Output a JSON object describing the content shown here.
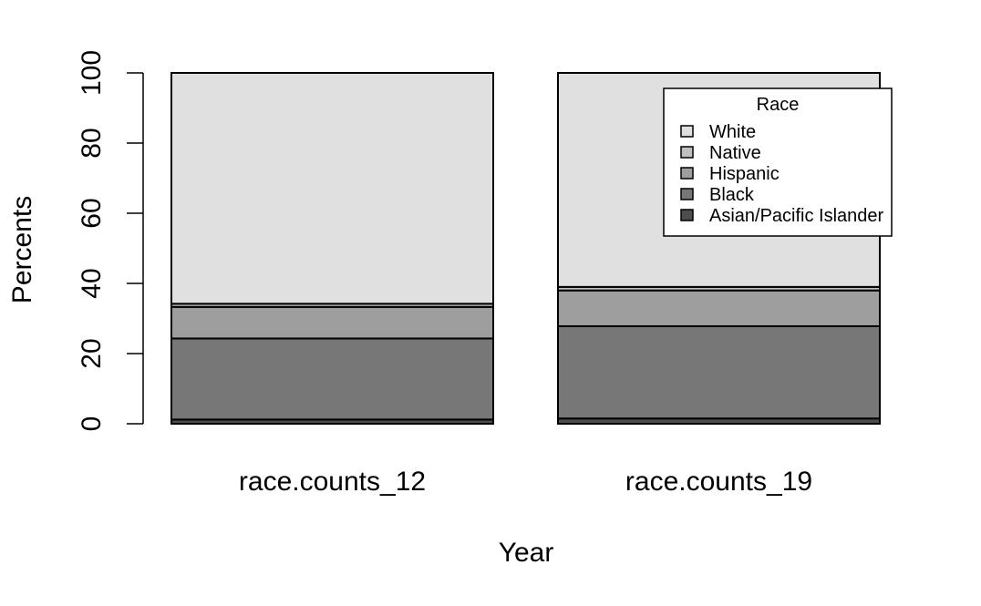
{
  "chart_data": {
    "type": "bar",
    "stacked": true,
    "xlabel": "Year",
    "ylabel": "Percents",
    "ylim": [
      0,
      100
    ],
    "yticks": [
      0,
      20,
      40,
      60,
      80,
      100
    ],
    "categories": [
      "race.counts_12",
      "race.counts_19"
    ],
    "series": [
      {
        "name": "Asian/Pacific Islander",
        "color": "#4d4d4d",
        "values": [
          1.2,
          1.5
        ]
      },
      {
        "name": "Black",
        "color": "#777777",
        "values": [
          23.1,
          26.3
        ]
      },
      {
        "name": "Hispanic",
        "color": "#9e9e9e",
        "values": [
          9.0,
          10.2
        ]
      },
      {
        "name": "Native",
        "color": "#c0c0c0",
        "values": [
          0.9,
          1.0
        ]
      },
      {
        "name": "White",
        "color": "#e0e0e0",
        "values": [
          65.8,
          61.0
        ]
      }
    ],
    "legend": {
      "title": "Race",
      "position": "top-right",
      "order": [
        "White",
        "Native",
        "Hispanic",
        "Black",
        "Asian/Pacific Islander"
      ]
    },
    "grid": false
  }
}
